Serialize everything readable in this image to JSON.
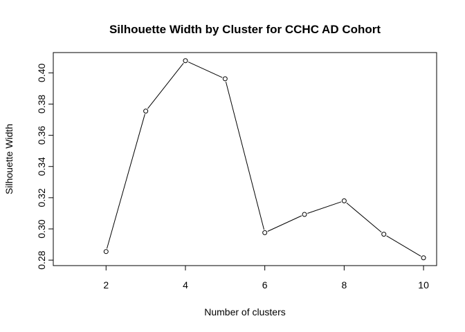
{
  "chart_data": {
    "type": "line",
    "title": "Silhouette Width by Cluster for CCHC AD Cohort",
    "xlabel": "Number of clusters",
    "ylabel": "Silhouette Width",
    "x": [
      2,
      3,
      4,
      5,
      6,
      7,
      8,
      9,
      10
    ],
    "y": [
      0.2855,
      0.3755,
      0.4078,
      0.3962,
      0.2976,
      0.3093,
      0.318,
      0.2966,
      0.2815
    ],
    "xlim": [
      0.67,
      10.33
    ],
    "ylim": [
      0.2765,
      0.413
    ],
    "x_ticks": [
      "2",
      "4",
      "6",
      "8",
      "10"
    ],
    "y_ticks": [
      "0.28",
      "0.30",
      "0.32",
      "0.34",
      "0.36",
      "0.38",
      "0.40"
    ],
    "markers": "open-circle",
    "grid": false,
    "legend": "none"
  }
}
